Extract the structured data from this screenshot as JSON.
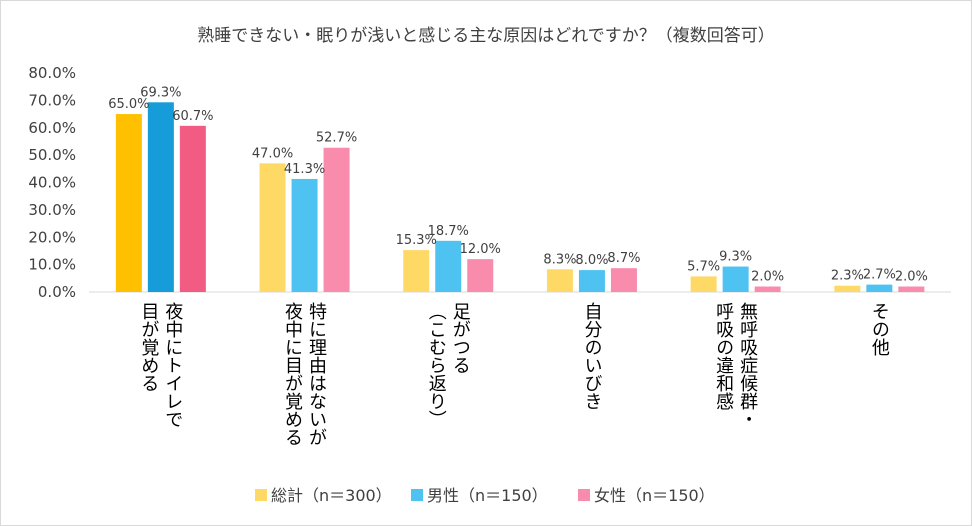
{
  "chart_data": {
    "type": "bar",
    "title": "熟睡できない・眠りが浅いと感じる主な原因はどれですか？（複数回答可）",
    "ylim": [
      0,
      80
    ],
    "yticks": [
      "0.0%",
      "10.0%",
      "20.0%",
      "30.0%",
      "40.0%",
      "50.0%",
      "60.0%",
      "70.0%",
      "80.0%"
    ],
    "grid": false,
    "legend_position": "bottom",
    "categories": [
      [
        "夜中にトイレで",
        "目が覚める"
      ],
      [
        "特に理由はないが",
        "夜中に目が覚める"
      ],
      [
        "足がつる",
        "（こむら返り）"
      ],
      [
        "自分のいびき"
      ],
      [
        "無呼吸症候群・",
        "呼吸の違和感"
      ],
      [
        "その他"
      ]
    ],
    "series": [
      {
        "name": "総計（n＝300）",
        "color_main": "#FFC000",
        "color_other": "#FFD966",
        "values": [
          65.0,
          47.0,
          15.3,
          8.3,
          5.7,
          2.3
        ],
        "labels": [
          "65.0%",
          "47.0%",
          "15.3%",
          "8.3%",
          "5.7%",
          "2.3%"
        ]
      },
      {
        "name": "男性（n＝150）",
        "color_main": "#169CD8",
        "color_other": "#4EC3F2",
        "values": [
          69.3,
          41.3,
          18.7,
          8.0,
          9.3,
          2.7
        ],
        "labels": [
          "69.3%",
          "41.3%",
          "18.7%",
          "8.0%",
          "9.3%",
          "2.7%"
        ]
      },
      {
        "name": "女性（n＝150）",
        "color_main": "#F25C82",
        "color_other": "#F98BAC",
        "values": [
          60.7,
          52.7,
          12.0,
          8.7,
          2.0,
          2.0
        ],
        "labels": [
          "60.7%",
          "52.7%",
          "12.0%",
          "8.7%",
          "2.0%",
          "2.0%"
        ]
      }
    ]
  }
}
